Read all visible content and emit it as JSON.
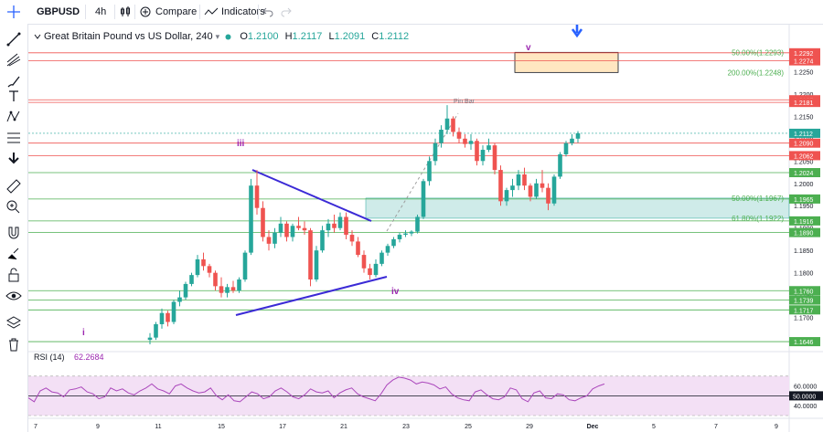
{
  "toolbar": {
    "symbol": "GBPUSD",
    "interval": "4h",
    "compare_label": "Compare",
    "indicators_label": "Indicators"
  },
  "legend": {
    "title": "Great Britain Pound vs US Dollar, 240",
    "o_label": "O",
    "o_value": "1.2100",
    "h_label": "H",
    "h_value": "1.2117",
    "l_label": "L",
    "l_value": "1.2091",
    "c_label": "C",
    "c_value": "1.2112"
  },
  "rsi": {
    "name": "RSI (14)",
    "value": "62.2684",
    "ticks": [
      "60.0000",
      "50.0000",
      "40.0000"
    ]
  },
  "icons": [
    "crosshair-icon",
    "trend-line-icon",
    "pitchfork-icon",
    "brush-icon",
    "text-icon",
    "pattern-icon",
    "fib-icon",
    "arrow-down-icon",
    "ruler-icon",
    "zoom-icon",
    "magnet-icon",
    "lock-icon",
    "eye-icon",
    "layers-icon",
    "trash-icon",
    "candles-icon",
    "compare-icon",
    "indicators-icon",
    "undo-icon",
    "redo-icon"
  ],
  "colors": {
    "up": "#26a69a",
    "down": "#ef5350",
    "trendline": "#3b2ad6",
    "wave_label": "#9c27b0",
    "rsi_band": "#f3e0f5",
    "rsi_line": "#ab47bc"
  },
  "chart_data": {
    "type": "candlestick",
    "x_tick_labels": [
      "7",
      "9",
      "11",
      "15",
      "17",
      "21",
      "23",
      "25",
      "29",
      "Dec",
      "5",
      "7",
      "9"
    ],
    "y_tick_labels": [
      "1.2250",
      "1.2200",
      "1.2150",
      "1.2100",
      "1.2050",
      "1.2000",
      "1.1950",
      "1.1900",
      "1.1850",
      "1.1800",
      "1.1750",
      "1.1700"
    ],
    "ylim": [
      1.164,
      1.231
    ],
    "price_lines": [
      {
        "label": "1.2292",
        "value": 1.2292,
        "kind": "red"
      },
      {
        "label": "1.2274",
        "value": 1.2274,
        "kind": "red"
      },
      {
        "label": "1.2187",
        "value": 1.2187,
        "kind": "red"
      },
      {
        "label": "1.2181",
        "value": 1.2181,
        "kind": "red"
      },
      {
        "label": "1.2090",
        "value": 1.209,
        "kind": "red"
      },
      {
        "label": "1.2062",
        "value": 1.2062,
        "kind": "red"
      },
      {
        "label": "1.2024",
        "value": 1.2024,
        "kind": "green"
      },
      {
        "label": "1.1965",
        "value": 1.1965,
        "kind": "green"
      },
      {
        "label": "1.1916",
        "value": 1.1916,
        "kind": "green"
      },
      {
        "label": "1.1890",
        "value": 1.189,
        "kind": "green"
      },
      {
        "label": "1.1760",
        "value": 1.176,
        "kind": "green"
      },
      {
        "label": "1.1739",
        "value": 1.1739,
        "kind": "green"
      },
      {
        "label": "1.1717",
        "value": 1.1717,
        "kind": "green"
      },
      {
        "label": "1.1646",
        "value": 1.1646,
        "kind": "green"
      }
    ],
    "current_price": {
      "label": "1.2112",
      "value": 1.2112
    },
    "fib_labels": [
      {
        "text": "50.00%(1.2293)",
        "value": 1.2293
      },
      {
        "text": "200.00%(1.2248)",
        "value": 1.2248
      },
      {
        "text": "50.00%(1.1967)",
        "value": 1.1967
      },
      {
        "text": "61.80%(1.1922)",
        "value": 1.1922
      }
    ],
    "annotations": [
      {
        "text": "Pin Bar",
        "value": 1.22
      },
      {
        "text": "i",
        "value": 1.167
      },
      {
        "text": "iii",
        "value": 1.2085
      },
      {
        "text": "iv",
        "value": 1.1765
      },
      {
        "text": "v",
        "value": 1.2295
      }
    ],
    "candles": [
      [
        1.165,
        1.1665,
        1.164,
        1.1655
      ],
      [
        1.1655,
        1.169,
        1.165,
        1.1685
      ],
      [
        1.1685,
        1.172,
        1.1675,
        1.171
      ],
      [
        1.171,
        1.1715,
        1.168,
        1.169
      ],
      [
        1.169,
        1.174,
        1.1685,
        1.1735
      ],
      [
        1.1735,
        1.176,
        1.1725,
        1.1745
      ],
      [
        1.1745,
        1.178,
        1.174,
        1.1775
      ],
      [
        1.1775,
        1.18,
        1.177,
        1.1795
      ],
      [
        1.1795,
        1.184,
        1.179,
        1.183
      ],
      [
        1.183,
        1.1845,
        1.1805,
        1.1815
      ],
      [
        1.1815,
        1.182,
        1.179,
        1.18
      ],
      [
        1.18,
        1.1805,
        1.176,
        1.177
      ],
      [
        1.177,
        1.179,
        1.1745,
        1.1755
      ],
      [
        1.1755,
        1.1775,
        1.1745,
        1.1768
      ],
      [
        1.1768,
        1.1782,
        1.1755,
        1.176
      ],
      [
        1.176,
        1.179,
        1.1755,
        1.1785
      ],
      [
        1.1785,
        1.185,
        1.178,
        1.1845
      ],
      [
        1.1845,
        1.201,
        1.184,
        1.1995
      ],
      [
        1.1995,
        1.203,
        1.193,
        1.1945
      ],
      [
        1.1945,
        1.196,
        1.187,
        1.188
      ],
      [
        1.188,
        1.1895,
        1.185,
        1.1865
      ],
      [
        1.1865,
        1.19,
        1.1855,
        1.189
      ],
      [
        1.189,
        1.1925,
        1.188,
        1.191
      ],
      [
        1.191,
        1.1915,
        1.187,
        1.188
      ],
      [
        1.188,
        1.191,
        1.187,
        1.1905
      ],
      [
        1.1905,
        1.1925,
        1.1895,
        1.19
      ],
      [
        1.19,
        1.1915,
        1.1885,
        1.1895
      ],
      [
        1.1895,
        1.19,
        1.177,
        1.1785
      ],
      [
        1.1785,
        1.186,
        1.178,
        1.185
      ],
      [
        1.185,
        1.1905,
        1.1845,
        1.1895
      ],
      [
        1.1895,
        1.192,
        1.188,
        1.191
      ],
      [
        1.191,
        1.193,
        1.189,
        1.19
      ],
      [
        1.19,
        1.1935,
        1.1895,
        1.1925
      ],
      [
        1.1925,
        1.1935,
        1.1875,
        1.1885
      ],
      [
        1.1885,
        1.1895,
        1.186,
        1.187
      ],
      [
        1.187,
        1.188,
        1.1835,
        1.184
      ],
      [
        1.184,
        1.185,
        1.18,
        1.181
      ],
      [
        1.181,
        1.182,
        1.1785,
        1.1795
      ],
      [
        1.1795,
        1.183,
        1.179,
        1.182
      ],
      [
        1.182,
        1.185,
        1.1815,
        1.1845
      ],
      [
        1.1845,
        1.1865,
        1.1838,
        1.186
      ],
      [
        1.186,
        1.188,
        1.1855,
        1.1875
      ],
      [
        1.1875,
        1.189,
        1.1868,
        1.1885
      ],
      [
        1.1885,
        1.1895,
        1.188,
        1.1888
      ],
      [
        1.1888,
        1.1895,
        1.1882,
        1.1892
      ],
      [
        1.1892,
        1.193,
        1.1888,
        1.1925
      ],
      [
        1.1925,
        1.201,
        1.192,
        1.2005
      ],
      [
        1.2005,
        1.206,
        1.1995,
        1.205
      ],
      [
        1.205,
        1.21,
        1.204,
        1.209
      ],
      [
        1.209,
        1.213,
        1.208,
        1.212
      ],
      [
        1.212,
        1.2175,
        1.211,
        1.2145
      ],
      [
        1.2145,
        1.215,
        1.2105,
        1.2115
      ],
      [
        1.2115,
        1.2125,
        1.209,
        1.21
      ],
      [
        1.21,
        1.211,
        1.208,
        1.2088
      ],
      [
        1.2088,
        1.211,
        1.2075,
        1.2095
      ],
      [
        1.2095,
        1.21,
        1.204,
        1.205
      ],
      [
        1.205,
        1.2085,
        1.204,
        1.2075
      ],
      [
        1.2075,
        1.21,
        1.207,
        1.2085
      ],
      [
        1.2085,
        1.209,
        1.202,
        1.203
      ],
      [
        1.203,
        1.204,
        1.195,
        1.196
      ],
      [
        1.196,
        1.199,
        1.195,
        1.1985
      ],
      [
        1.1985,
        1.201,
        1.197,
        1.1995
      ],
      [
        1.1995,
        1.203,
        1.1985,
        1.202
      ],
      [
        1.202,
        1.2035,
        1.1985,
        1.1995
      ],
      [
        1.1995,
        1.2,
        1.196,
        1.197
      ],
      [
        1.197,
        1.201,
        1.1965,
        1.2
      ],
      [
        1.2,
        1.203,
        1.198,
        1.199
      ],
      [
        1.199,
        1.2,
        1.194,
        1.1955
      ],
      [
        1.1955,
        1.202,
        1.195,
        1.2015
      ],
      [
        1.2015,
        1.207,
        1.201,
        1.2065
      ],
      [
        1.2065,
        1.2095,
        1.206,
        1.209
      ],
      [
        1.209,
        1.211,
        1.2085,
        1.21
      ],
      [
        1.21,
        1.2117,
        1.2091,
        1.2112
      ]
    ],
    "rsi_values": [
      48,
      44,
      55,
      58,
      54,
      53,
      49,
      56,
      57,
      59,
      54,
      52,
      47,
      49,
      58,
      55,
      57,
      53,
      51,
      55,
      58,
      62,
      57,
      55,
      52,
      60,
      62,
      58,
      55,
      53,
      54,
      58,
      50,
      46,
      51,
      45,
      44,
      49,
      54,
      52,
      47,
      49,
      55,
      58,
      54,
      49,
      47,
      51,
      57,
      54,
      53,
      55,
      48,
      53,
      56,
      58,
      52,
      49,
      47,
      45,
      52,
      61,
      66,
      69,
      68,
      66,
      62,
      64,
      63,
      61,
      57,
      59,
      52,
      48,
      46,
      45,
      54,
      56,
      51,
      47,
      46,
      49,
      58,
      56,
      47,
      44,
      53,
      55,
      48,
      47,
      52,
      51,
      46,
      45,
      48,
      50,
      57,
      60,
      62
    ]
  }
}
